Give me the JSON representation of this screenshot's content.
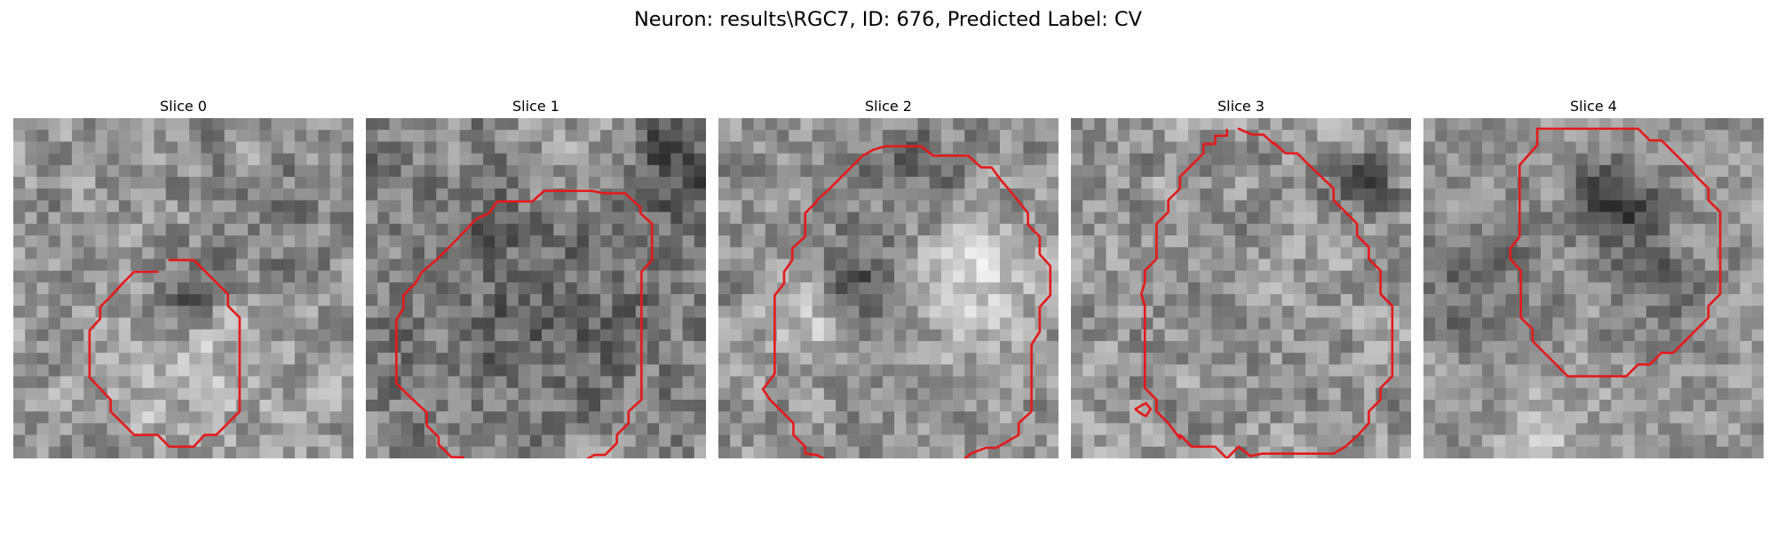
{
  "figure": {
    "title": "Neuron: results\\RGC7, ID: 676, Predicted Label: CV"
  },
  "colors": {
    "background": "#ffffff",
    "contour": "#e31a1c",
    "colormap": "gray"
  },
  "image_grid": {
    "rows": 29,
    "cols": 29
  },
  "slices": [
    {
      "title": "Slice 0",
      "image_description": "noisy grayscale microscopy patch; faint bright soma in lower center",
      "contours": [
        [
          [
            13.3,
            12.1
          ],
          [
            15.4,
            12.1
          ],
          [
            18.3,
            15.0
          ],
          [
            18.3,
            16.0
          ],
          [
            19.3,
            17.0
          ],
          [
            19.3,
            25.0
          ],
          [
            17.3,
            27.0
          ],
          [
            16.3,
            27.0
          ],
          [
            15.4,
            28.0
          ],
          [
            13.3,
            28.0
          ],
          [
            12.3,
            27.0
          ],
          [
            10.3,
            27.0
          ],
          [
            8.3,
            25.0
          ],
          [
            8.3,
            24.0
          ],
          [
            6.5,
            22.1
          ],
          [
            6.5,
            18.1
          ],
          [
            7.4,
            17.1
          ],
          [
            7.4,
            16.1
          ],
          [
            8.4,
            15.1
          ],
          [
            9.3,
            14.1
          ],
          [
            10.3,
            13.1
          ],
          [
            12.3,
            13.1
          ]
        ]
      ]
    },
    {
      "title": "Slice 1",
      "image_description": "noisy grayscale microscopy patch; darker cell body interior",
      "contours": [
        [
          [
            8.3,
            29.2
          ],
          [
            8.3,
            28.9
          ],
          [
            7.3,
            28.9
          ],
          [
            6.2,
            27.8
          ],
          [
            6.2,
            27.2
          ],
          [
            5.2,
            26.2
          ],
          [
            5.2,
            25.1
          ],
          [
            3.6,
            23.6
          ],
          [
            2.6,
            22.6
          ],
          [
            2.6,
            17.2
          ],
          [
            3.2,
            16.2
          ],
          [
            3.2,
            15.1
          ],
          [
            4.2,
            14.1
          ],
          [
            4.8,
            13.1
          ],
          [
            6.0,
            12.1
          ],
          [
            7.5,
            10.6
          ],
          [
            9.4,
            8.6
          ],
          [
            10.5,
            8.1
          ],
          [
            11.2,
            7.1
          ],
          [
            14.2,
            7.1
          ],
          [
            15.2,
            6.2
          ],
          [
            18.3,
            6.2
          ],
          [
            19.3,
            6.2
          ],
          [
            19.3,
            6.2
          ],
          [
            20.2,
            6.4
          ],
          [
            22.1,
            6.4
          ],
          [
            23.4,
            7.6
          ],
          [
            23.4,
            8.1
          ],
          [
            24.4,
            9.0
          ],
          [
            24.4,
            10.5
          ],
          [
            24.4,
            12.1
          ],
          [
            23.5,
            13.1
          ],
          [
            23.5,
            24.0
          ],
          [
            22.4,
            25.0
          ],
          [
            22.4,
            26.0
          ],
          [
            21.4,
            27.0
          ],
          [
            21.4,
            27.7
          ],
          [
            20.4,
            28.7
          ],
          [
            19.5,
            28.7
          ],
          [
            18.6,
            29.2
          ]
        ]
      ]
    },
    {
      "title": "Slice 2",
      "image_description": "noisy grayscale microscopy patch; ring-like soma with dark nucleus",
      "contours": [
        [
          [
            9.3,
            29.2
          ],
          [
            8.4,
            28.7
          ],
          [
            7.4,
            28.6
          ],
          [
            7.4,
            28.0
          ],
          [
            6.4,
            27.0
          ],
          [
            6.4,
            26.0
          ],
          [
            5.4,
            25.0
          ],
          [
            4.4,
            24.0
          ],
          [
            3.8,
            23.1
          ],
          [
            4.8,
            21.8
          ],
          [
            4.8,
            15.1
          ],
          [
            5.6,
            14.1
          ],
          [
            5.6,
            13.1
          ],
          [
            6.3,
            12.1
          ],
          [
            6.3,
            11.1
          ],
          [
            7.4,
            10.1
          ],
          [
            7.4,
            8.1
          ],
          [
            8.4,
            7.1
          ],
          [
            8.4,
            7.0
          ],
          [
            9.4,
            6.1
          ],
          [
            10.4,
            5.1
          ],
          [
            11.4,
            4.1
          ],
          [
            12.3,
            3.2
          ],
          [
            13.2,
            2.7
          ],
          [
            14.2,
            2.4
          ],
          [
            17.3,
            2.4
          ],
          [
            18.3,
            3.2
          ],
          [
            19.2,
            3.2
          ],
          [
            20.2,
            3.2
          ],
          [
            21.3,
            3.2
          ],
          [
            22.4,
            4.2
          ],
          [
            23.3,
            4.2
          ],
          [
            24.1,
            5.3
          ],
          [
            24.8,
            6.1
          ],
          [
            25.6,
            7.1
          ],
          [
            26.4,
            8.1
          ],
          [
            26.4,
            9.1
          ],
          [
            27.4,
            10.1
          ],
          [
            27.4,
            11.6
          ],
          [
            28.3,
            12.6
          ],
          [
            28.3,
            15.1
          ],
          [
            27.4,
            16.1
          ],
          [
            27.4,
            18.2
          ],
          [
            26.7,
            19.3
          ],
          [
            26.7,
            25.0
          ],
          [
            25.6,
            26.0
          ],
          [
            25.6,
            27.0
          ],
          [
            23.7,
            28.1
          ],
          [
            22.8,
            28.1
          ],
          [
            21.5,
            28.6
          ],
          [
            20.8,
            29.2
          ]
        ]
      ]
    },
    {
      "title": "Slice 3",
      "image_description": "noisy grayscale microscopy patch; large oval soma",
      "contours": [
        [
          [
            14.3,
            0.9
          ],
          [
            15.4,
            1.4
          ],
          [
            16.4,
            1.4
          ],
          [
            17.3,
            2.2
          ],
          [
            17.3,
            2.1
          ],
          [
            18.3,
            3.0
          ],
          [
            19.3,
            3.0
          ],
          [
            20.3,
            4.0
          ],
          [
            22.4,
            6.0
          ],
          [
            22.4,
            7.0
          ],
          [
            23.4,
            8.0
          ],
          [
            24.4,
            9.0
          ],
          [
            24.4,
            10.0
          ],
          [
            25.4,
            11.0
          ],
          [
            25.4,
            12.0
          ],
          [
            26.4,
            13.0
          ],
          [
            26.4,
            15.0
          ],
          [
            27.4,
            16.0
          ],
          [
            27.4,
            17.0
          ],
          [
            27.4,
            18.0
          ],
          [
            27.4,
            19.0
          ],
          [
            27.4,
            22.0
          ],
          [
            26.4,
            23.0
          ],
          [
            26.4,
            24.0
          ],
          [
            25.4,
            25.0
          ],
          [
            25.4,
            26.0
          ],
          [
            24.5,
            27.0
          ],
          [
            23.4,
            28.0
          ],
          [
            22.4,
            28.6
          ],
          [
            20.3,
            28.6
          ],
          [
            19.3,
            28.6
          ],
          [
            18.3,
            28.6
          ],
          [
            17.3,
            28.6
          ],
          [
            16.3,
            28.6
          ],
          [
            15.3,
            28.8
          ],
          [
            14.3,
            28.0
          ],
          [
            13.3,
            29.0
          ],
          [
            12.3,
            28.0
          ],
          [
            11.3,
            28.0
          ],
          [
            10.3,
            28.0
          ],
          [
            9.3,
            27.0
          ],
          [
            9.3,
            27.3
          ],
          [
            8.3,
            26.0
          ],
          [
            7.3,
            25.0
          ],
          [
            7.3,
            24.0
          ],
          [
            6.3,
            23.0
          ],
          [
            6.3,
            20.0
          ],
          [
            6.3,
            16.0
          ],
          [
            6.0,
            15.0
          ],
          [
            6.3,
            14.0
          ],
          [
            6.3,
            13.0
          ],
          [
            7.3,
            12.0
          ],
          [
            7.3,
            9.0
          ],
          [
            8.3,
            8.0
          ],
          [
            8.3,
            7.0
          ],
          [
            9.3,
            6.0
          ],
          [
            9.3,
            5.0
          ],
          [
            10.3,
            4.0
          ],
          [
            11.3,
            3.0
          ],
          [
            11.3,
            2.2
          ],
          [
            12.3,
            2.2
          ],
          [
            12.3,
            1.5
          ],
          [
            13.3,
            1.5
          ],
          [
            13.3,
            1.0
          ]
        ],
        [
          [
            6.4,
            24.3
          ],
          [
            6.0,
            24.5
          ],
          [
            5.5,
            24.8
          ],
          [
            6.0,
            25.2
          ],
          [
            6.4,
            25.4
          ],
          [
            6.8,
            24.8
          ],
          [
            6.4,
            24.3
          ]
        ]
      ]
    },
    {
      "title": "Slice 4",
      "image_description": "noisy grayscale microscopy patch; compact soma near top center",
      "contours": [
        [
          [
            9.7,
            0.9
          ],
          [
            18.3,
            0.9
          ],
          [
            19.3,
            1.9
          ],
          [
            20.3,
            1.9
          ],
          [
            22.3,
            3.9
          ],
          [
            23.3,
            5.0
          ],
          [
            24.3,
            6.0
          ],
          [
            24.3,
            7.0
          ],
          [
            25.3,
            8.0
          ],
          [
            25.3,
            15.0
          ],
          [
            24.3,
            16.0
          ],
          [
            24.3,
            17.0
          ],
          [
            23.3,
            18.0
          ],
          [
            22.3,
            19.0
          ],
          [
            21.3,
            20.0
          ],
          [
            20.3,
            20.0
          ],
          [
            19.3,
            21.0
          ],
          [
            18.3,
            21.0
          ],
          [
            17.3,
            22.0
          ],
          [
            13.3,
            22.0
          ],
          [
            12.3,
            22.0
          ],
          [
            11.3,
            21.0
          ],
          [
            10.3,
            20.0
          ],
          [
            9.3,
            19.0
          ],
          [
            9.3,
            18.0
          ],
          [
            8.3,
            17.0
          ],
          [
            8.3,
            13.0
          ],
          [
            7.4,
            12.0
          ],
          [
            7.4,
            11.1
          ],
          [
            8.2,
            10.1
          ],
          [
            8.2,
            4.0
          ],
          [
            9.7,
            2.3
          ],
          [
            9.7,
            0.9
          ]
        ]
      ]
    }
  ]
}
